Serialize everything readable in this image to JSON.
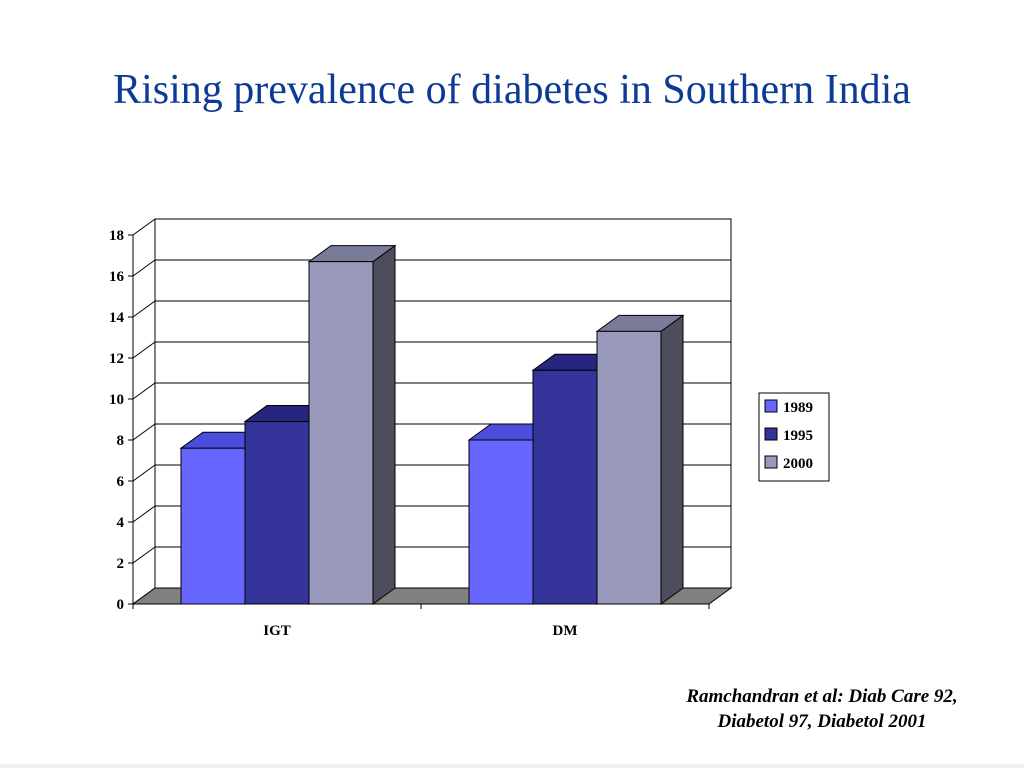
{
  "title": "Rising prevalence of diabetes in Southern India",
  "citation": {
    "line1": "Ramchandran et al: Diab Care 92,",
    "line2": "Diabetol 97, Diabetol 2001"
  },
  "chart_data": {
    "type": "bar",
    "style": "3d-clustered-column",
    "categories": [
      "IGT",
      "DM"
    ],
    "series": [
      {
        "name": "1989",
        "values": [
          7.6,
          8.0
        ],
        "color": "#6666ff",
        "top": "#4d4ddd",
        "side": "#3a3a9e"
      },
      {
        "name": "1995",
        "values": [
          8.9,
          11.4
        ],
        "color": "#333399",
        "top": "#262680",
        "side": "#1f1f66"
      },
      {
        "name": "2000",
        "values": [
          16.7,
          13.3
        ],
        "color": "#9999bb",
        "top": "#7a7a99",
        "side": "#4d4d5e"
      }
    ],
    "y_ticks": [
      "0",
      "2",
      "4",
      "6",
      "8",
      "10",
      "12",
      "14",
      "16",
      "18"
    ],
    "ylim": [
      0,
      18
    ],
    "grid": true,
    "legend_position": "right",
    "title": "",
    "xlabel": "",
    "ylabel": ""
  }
}
